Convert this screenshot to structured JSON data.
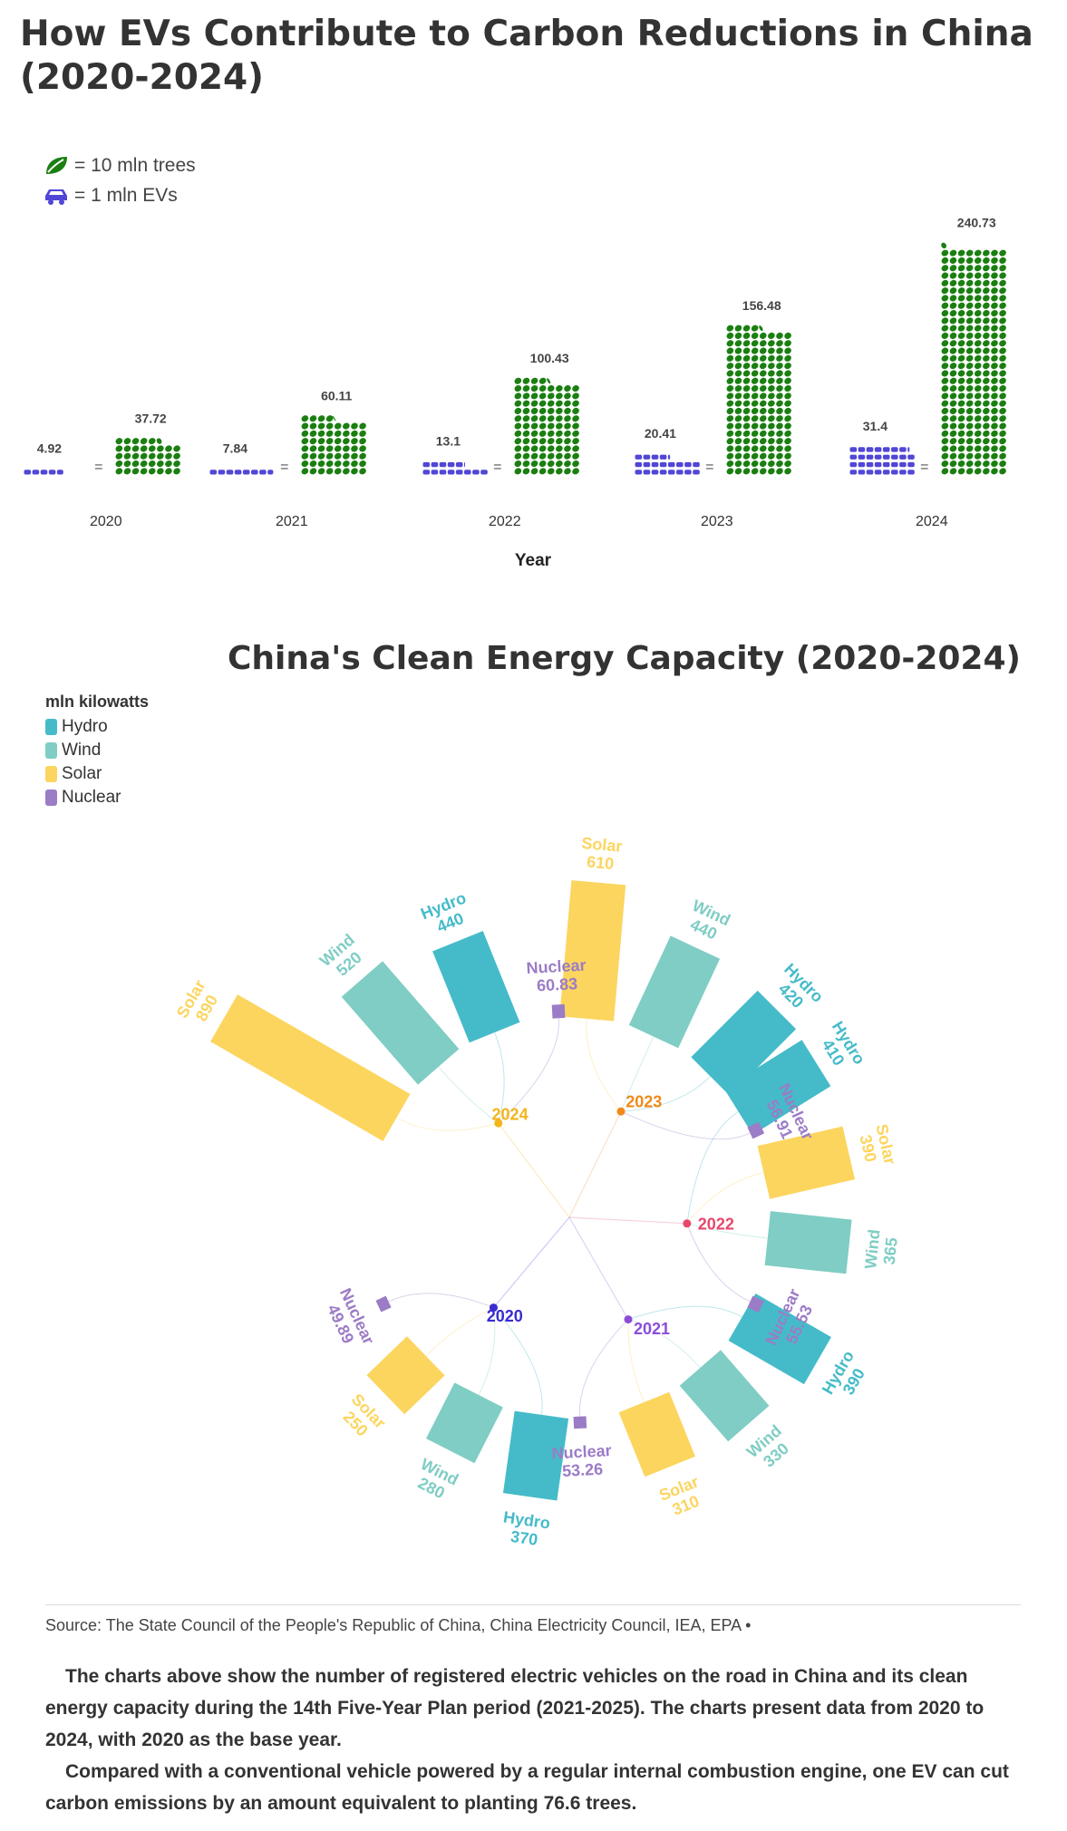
{
  "title_ev": "How EVs Contribute to Carbon Reductions in China (2020-2024)",
  "legend_ev": {
    "tree": "= 10 mln trees",
    "ev": "= 1 mln EVs"
  },
  "colors": {
    "tree": "#1a7f10",
    "ev": "#5146d6",
    "Hydro": "#45bbc9",
    "Wind": "#7fcdc4",
    "Solar": "#fcd55f",
    "Nuclear": "#9b7cc6"
  },
  "title_energy": "China's Clean Energy Capacity (2020-2024)",
  "legend_energy": {
    "unit": "mln kilowatts",
    "items": [
      "Hydro",
      "Wind",
      "Solar",
      "Nuclear"
    ]
  },
  "chart_data": [
    {
      "type": "bar",
      "title": "How EVs Contribute to Carbon Reductions in China (2020-2024)",
      "xlabel": "Year",
      "categories": [
        "2020",
        "2021",
        "2022",
        "2023",
        "2024"
      ],
      "series": [
        {
          "name": "= 1 mln EVs",
          "values": [
            4.92,
            7.84,
            13.1,
            20.41,
            31.4
          ]
        },
        {
          "name": "= 10 mln trees",
          "values": [
            37.72,
            60.11,
            100.43,
            156.48,
            240.73
          ]
        }
      ]
    },
    {
      "type": "bar",
      "title": "China's Clean Energy Capacity (2020-2024)",
      "ylabel": "mln kilowatts",
      "categories": [
        "2020",
        "2021",
        "2022",
        "2023",
        "2024"
      ],
      "series": [
        {
          "name": "Hydro",
          "values": [
            370,
            390,
            410,
            420,
            440
          ]
        },
        {
          "name": "Wind",
          "values": [
            280,
            330,
            365,
            440,
            520
          ]
        },
        {
          "name": "Solar",
          "values": [
            250,
            310,
            390,
            610,
            890
          ]
        },
        {
          "name": "Nuclear",
          "values": [
            49.89,
            53.26,
            55.53,
            56.91,
            60.83
          ]
        }
      ],
      "labels": {
        "2020": [
          "Nuclear 49.89",
          "Solar 250",
          "Wind 280",
          "Hydro 370"
        ],
        "2021": [
          "Nuclear 53.26",
          "Solar 310",
          "Wind 330",
          "Hydro 390"
        ],
        "2022": [
          "Nuclear 55.53",
          "Wind 365",
          "Solar 390",
          "Hydro 410"
        ],
        "2023": [
          "Nuclear 56.91",
          "Hydro 420",
          "Wind 440"
        ],
        "2024": [
          "Nuclear 60.83",
          "Hydro 440",
          "Wind 520",
          "Solar 890"
        ]
      }
    }
  ],
  "source": "Source: The State Council of the People's Republic of China, China Electricity Council, IEA, EPA •",
  "note": [
    "The charts above show the number of registered electric vehicles on the road in China and its clean energy capacity during the 14th Five-Year Plan period (2021-2025). The charts present data from 2020 to 2024, with 2020 as the base year.",
    "Compared with a conventional vehicle powered by a regular internal combustion engine, one EV can cut carbon emissions by an amount equivalent to planting 76.6 trees."
  ]
}
